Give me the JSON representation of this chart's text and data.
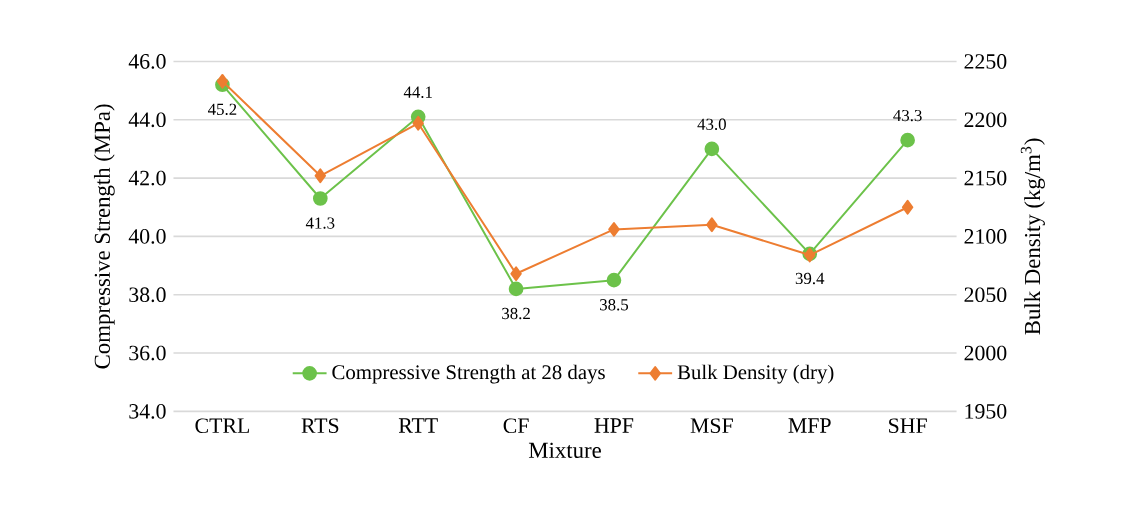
{
  "chart_data": {
    "type": "line",
    "xlabel": "Mixture",
    "ylabel": "Compressive Strength (MPa)",
    "y2label": "Bulk Density (kg/m$^{3}$)",
    "categories": [
      "CTRL",
      "RTS",
      "RTT",
      "CF",
      "HPF",
      "MSF",
      "MFP",
      "SHF"
    ],
    "series": [
      {
        "name": "Compressive Strength at 28 days",
        "color": "#6cc24a",
        "marker": "circle",
        "values": [
          45.2,
          41.3,
          44.1,
          38.2,
          38.5,
          43.0,
          39.4,
          43.3
        ],
        "value_labels": [
          "45.2",
          "41.3",
          "44.1",
          "38.2",
          "38.5",
          "43.0",
          "39.4",
          "43.3"
        ]
      },
      {
        "name": "Bulk Density (dry)",
        "color": "#ed7d31",
        "marker": "diamond",
        "axis": "y2",
        "values": [
          2233,
          2152,
          2197,
          2068,
          2106,
          2110,
          2084,
          2125
        ]
      }
    ],
    "ylim": [
      34,
      46
    ],
    "yticks": [
      {
        "value": 34,
        "label": "34.0"
      },
      {
        "value": 36,
        "label": "36.0"
      },
      {
        "value": 38,
        "label": "38.0"
      },
      {
        "value": 40,
        "label": "40.0"
      },
      {
        "value": 42,
        "label": "42.0"
      },
      {
        "value": 44,
        "label": "44.0"
      },
      {
        "value": 46,
        "label": "46.0"
      }
    ],
    "y2lim": [
      1950,
      2250
    ],
    "y2ticks": [
      1950,
      2000,
      2050,
      2100,
      2150,
      2200,
      2250
    ],
    "grid": "y",
    "legend": "bottom"
  }
}
